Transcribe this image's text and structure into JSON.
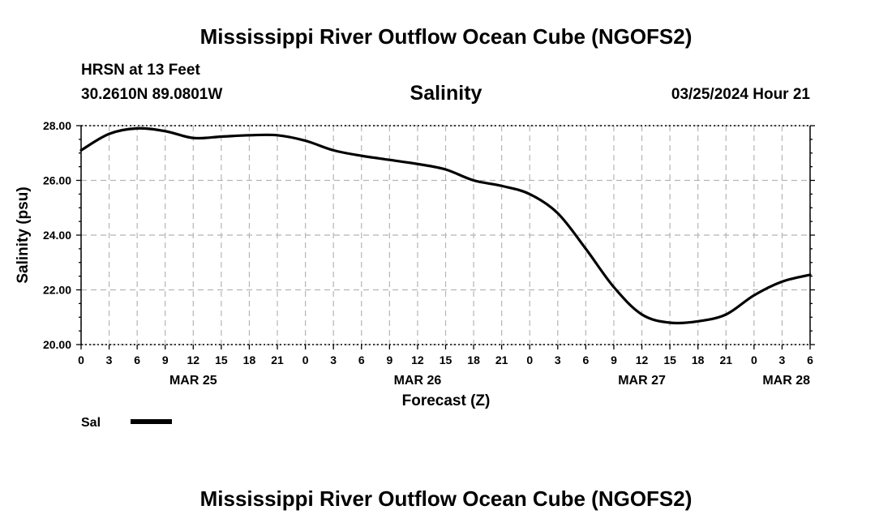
{
  "page": {
    "title_top": "Mississippi River Outflow Ocean Cube (NGOFS2)",
    "title_bottom": "Mississippi River Outflow Ocean Cube (NGOFS2)",
    "station": "HRSN at 13 Feet",
    "coords": "30.2610N  89.0801W",
    "timestamp": "03/25/2024 Hour 21"
  },
  "chart_data": {
    "type": "line",
    "title": "Salinity",
    "xlabel": "Forecast (Z)",
    "ylabel": "Salinity (psu)",
    "x_unit": "forecast hours from MAR 25 00Z",
    "xlim": [
      0,
      78
    ],
    "ylim": [
      20,
      28
    ],
    "grid": true,
    "y_ticks": [
      20,
      22,
      24,
      26,
      28
    ],
    "y_tick_labels": [
      "20.00",
      "22.00",
      "24.00",
      "26.00",
      "28.00"
    ],
    "x_ticks": [
      0,
      3,
      6,
      9,
      12,
      15,
      18,
      21,
      24,
      27,
      30,
      33,
      36,
      39,
      42,
      45,
      48,
      51,
      54,
      57,
      60,
      63,
      66,
      69,
      72,
      75,
      78
    ],
    "x_tick_labels": [
      "0",
      "3",
      "6",
      "9",
      "12",
      "15",
      "18",
      "21",
      "0",
      "3",
      "6",
      "9",
      "12",
      "15",
      "18",
      "21",
      "0",
      "3",
      "6",
      "9",
      "12",
      "15",
      "18",
      "21",
      "0",
      "3",
      "6"
    ],
    "date_labels": [
      {
        "x": 12,
        "label": "MAR 25"
      },
      {
        "x": 36,
        "label": "MAR 26"
      },
      {
        "x": 60,
        "label": "MAR 27"
      },
      {
        "x": 78,
        "label": "MAR 28"
      }
    ],
    "legend": [
      {
        "name": "Sal",
        "color": "#000000"
      }
    ],
    "legend_position": "bottom-left",
    "series": [
      {
        "name": "Sal",
        "color": "#000000",
        "x": [
          0,
          3,
          6,
          9,
          12,
          15,
          18,
          21,
          24,
          27,
          30,
          33,
          36,
          39,
          42,
          45,
          48,
          51,
          54,
          57,
          60,
          63,
          66,
          69,
          72,
          75,
          78
        ],
        "values": [
          27.1,
          27.7,
          27.9,
          27.8,
          27.55,
          27.6,
          27.65,
          27.65,
          27.45,
          27.1,
          26.9,
          26.75,
          26.6,
          26.4,
          26.0,
          25.8,
          25.5,
          24.8,
          23.5,
          22.1,
          21.1,
          20.8,
          20.85,
          21.1,
          21.8,
          22.3,
          22.55
        ]
      }
    ]
  }
}
